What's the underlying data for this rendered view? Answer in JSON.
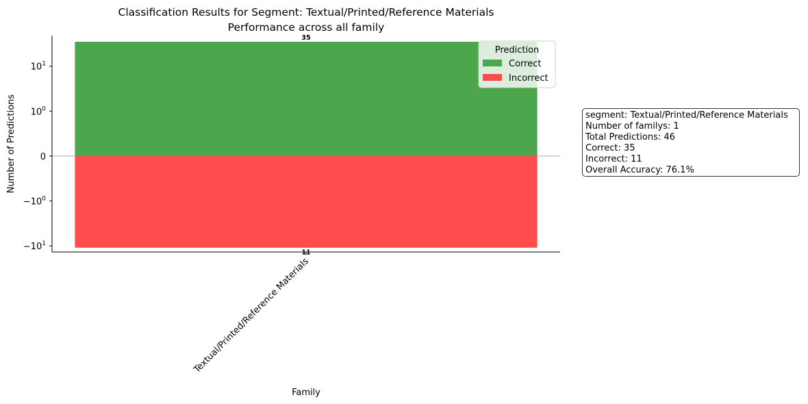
{
  "chart_data": {
    "type": "bar",
    "title": "Classification Results for Segment: Textual/Printed/Reference Materials",
    "subtitle": "Performance across all family",
    "xlabel": "Family",
    "ylabel": "Number of Predictions",
    "y_scale": "symlog",
    "categories": [
      "Textual/Printed/Reference Materials"
    ],
    "series": [
      {
        "name": "Correct",
        "values": [
          35
        ],
        "sign": "positive",
        "color": "#4ca64c"
      },
      {
        "name": "Incorrect",
        "values": [
          11
        ],
        "sign": "negative",
        "color": "#ff4d4d"
      }
    ],
    "data_labels": [
      "35",
      "11"
    ],
    "yticks": [
      {
        "value": 10,
        "label": "10",
        "exp": "1"
      },
      {
        "value": 1,
        "label": "10",
        "exp": "0"
      },
      {
        "value": 0,
        "label": "0",
        "exp": ""
      },
      {
        "value": -1,
        "label": "−10",
        "exp": "0"
      },
      {
        "value": -10,
        "label": "−10",
        "exp": "1"
      }
    ],
    "ylim": [
      -13.7,
      48
    ],
    "grid": false,
    "zero_line": true,
    "legend": {
      "title": "Prediction",
      "placement": "upper-right",
      "entries": [
        "Correct",
        "Incorrect"
      ]
    }
  },
  "stats": {
    "line1": "segment: Textual/Printed/Reference Materials",
    "line2": "Number of familys: 1",
    "line3": "Total Predictions: 46",
    "line4": "Correct: 35",
    "line5": "Incorrect: 11",
    "line6": "Overall Accuracy: 76.1%"
  }
}
